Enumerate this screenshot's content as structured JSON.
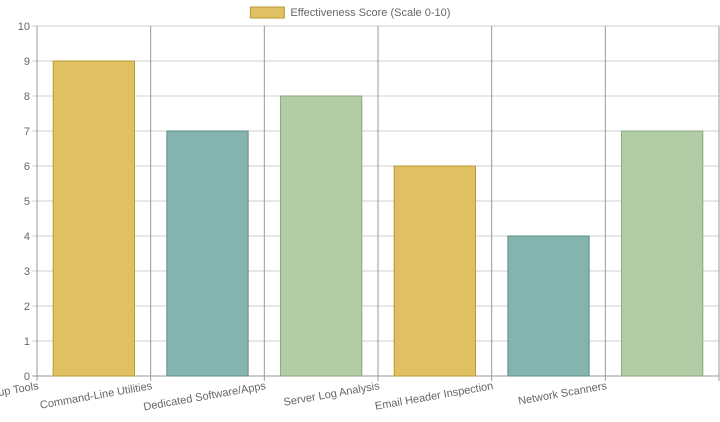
{
  "chart_data": {
    "type": "bar",
    "title": "",
    "xlabel": "",
    "ylabel": "",
    "categories": [
      "Online Lookup Tools",
      "Command-Line Utilities",
      "Dedicated Software/Apps",
      "Server Log Analysis",
      "Email Header Inspection",
      "Network Scanners"
    ],
    "series": [
      {
        "name": "Effectiveness Score (Scale 0-10)",
        "values": [
          9,
          7,
          8,
          6,
          4,
          7
        ]
      }
    ],
    "bar_colors": [
      "#dfc164",
      "#85b4ae",
      "#b2cca6",
      "#dfc164",
      "#85b4ae",
      "#b2cca6"
    ],
    "bar_border_colors": [
      "#b89a30",
      "#5f8f89",
      "#8aa87e",
      "#b89a30",
      "#5f8f89",
      "#8aa87e"
    ],
    "legend_color": "#dfc164",
    "legend_border_color": "#b89a30",
    "ylim": [
      0,
      10
    ],
    "y_ticks": [
      0,
      1,
      2,
      3,
      4,
      5,
      6,
      7,
      8,
      9,
      10
    ],
    "grid": true,
    "legend_position": "top"
  }
}
